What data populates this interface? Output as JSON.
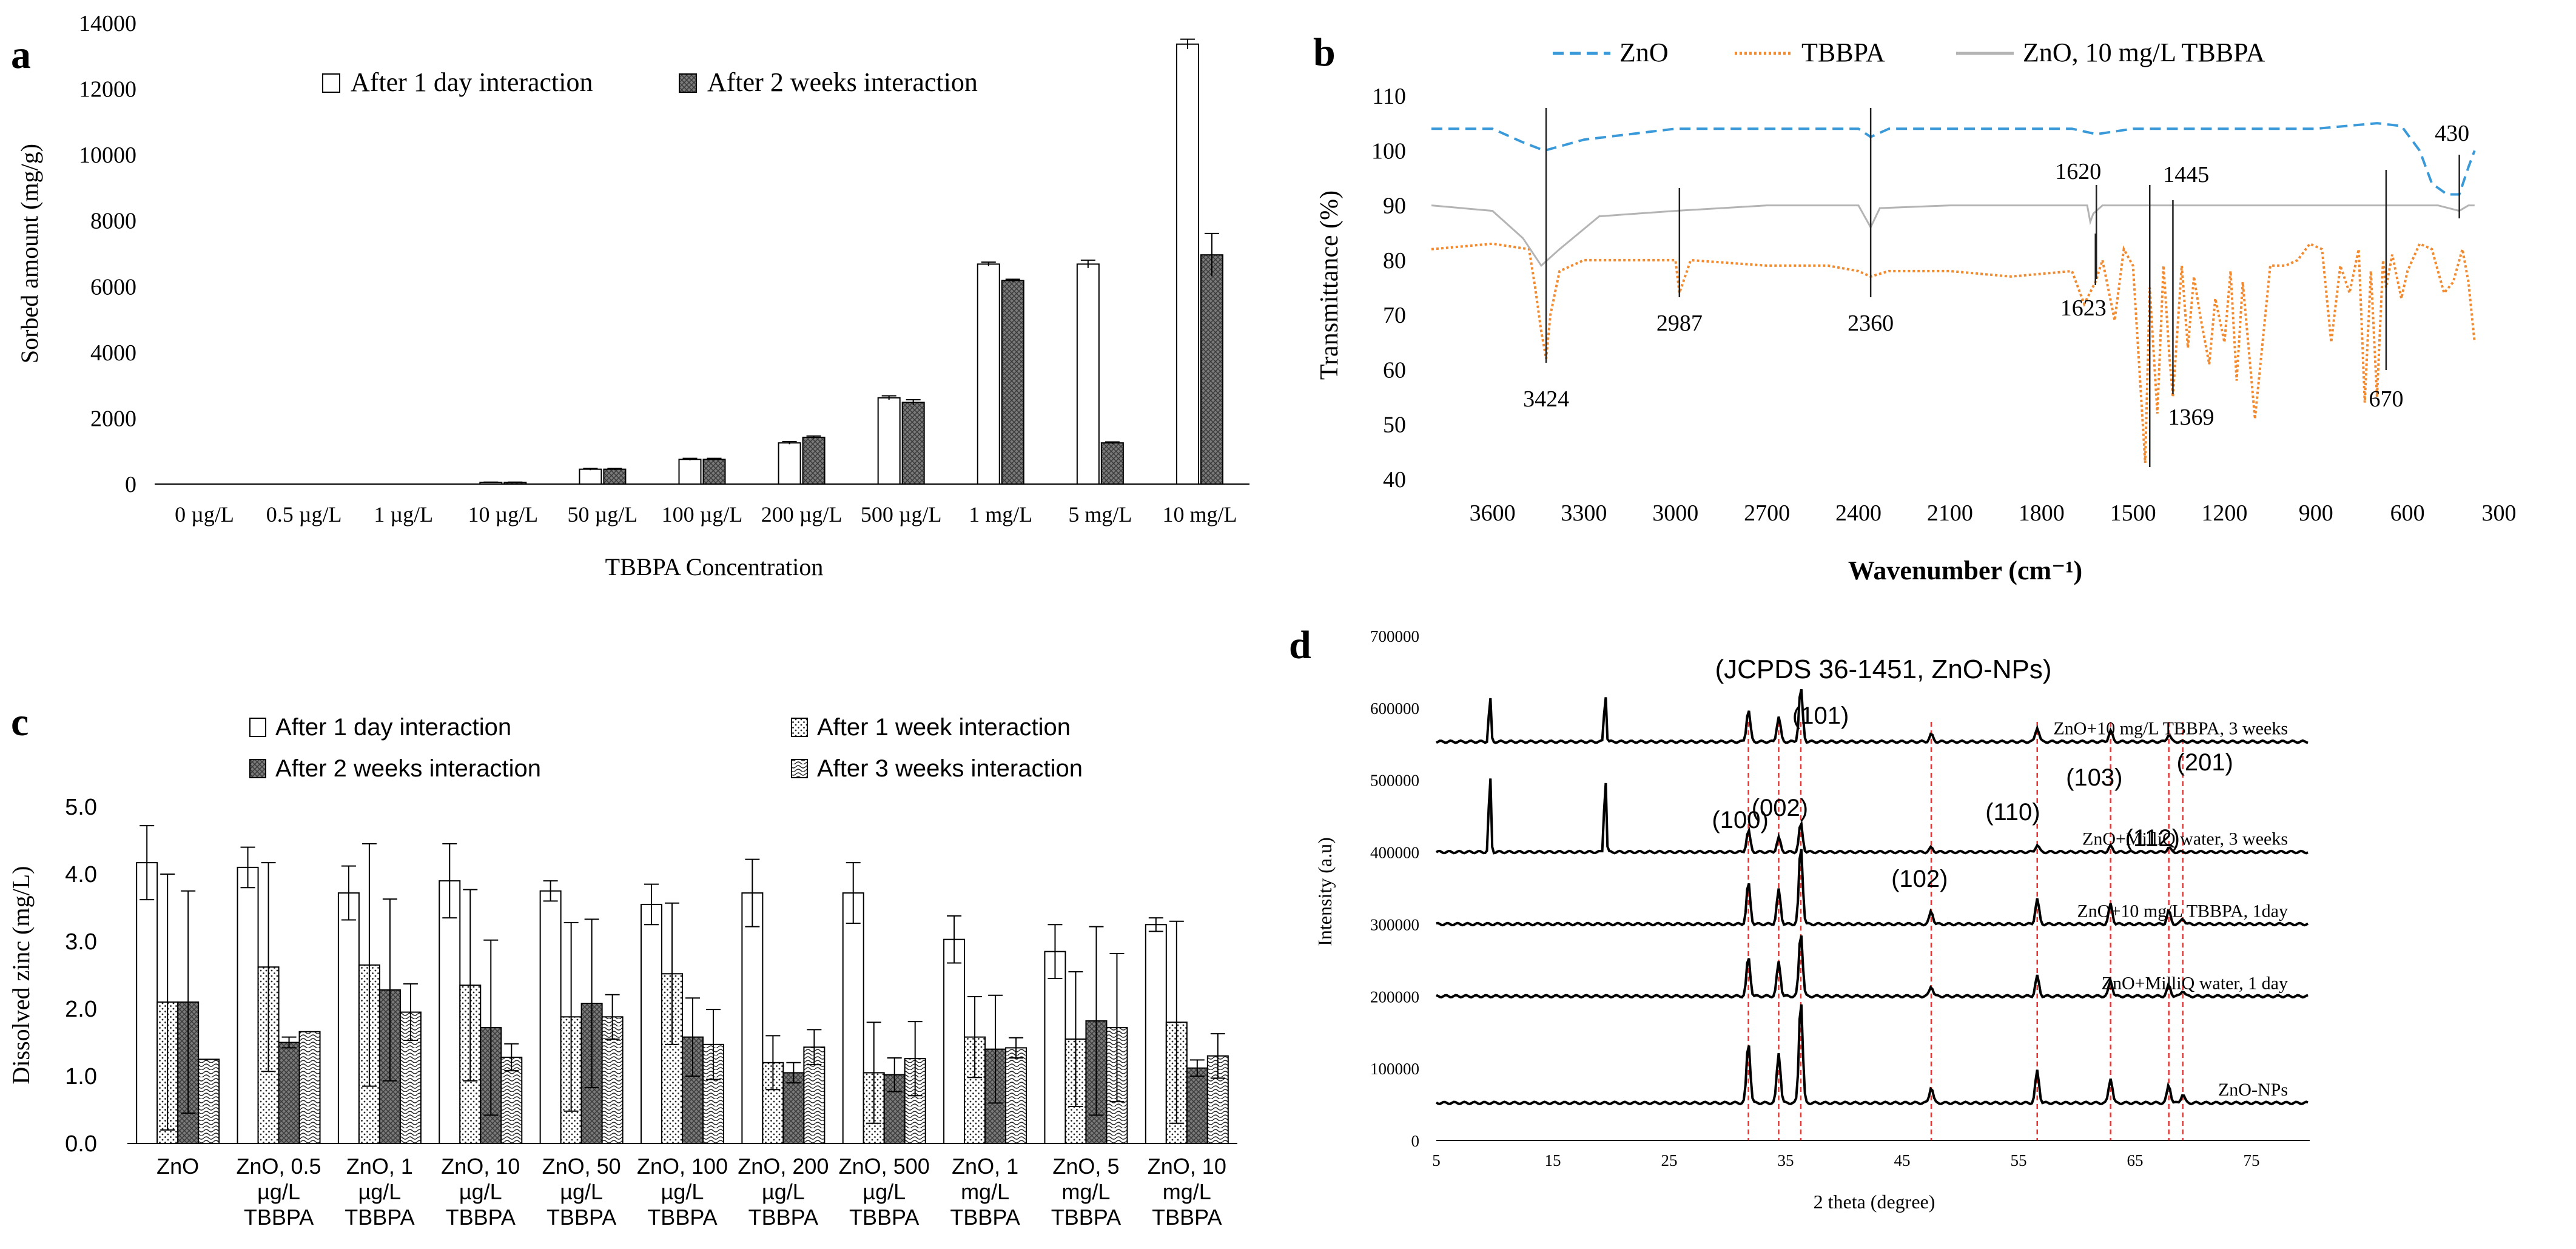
{
  "panel_labels": {
    "a": "a",
    "b": "b",
    "c": "c",
    "d": "d"
  },
  "chart_data": [
    {
      "panel": "a",
      "type": "bar",
      "title": "",
      "xlabel": "TBBPA Concentration",
      "ylabel": "Sorbed amount (mg/g)",
      "ylim": [
        0,
        14000
      ],
      "yticks": [
        "0",
        "2000",
        "4000",
        "6000",
        "8000",
        "10000",
        "12000",
        "14000"
      ],
      "legend_position": "top",
      "categories": [
        "0 µg/L",
        "0.5 µg/L",
        "1 µg/L",
        "10 µg/L",
        "50 µg/L",
        "100 µg/L",
        "200 µg/L",
        "500 µg/L",
        "1 mg/L",
        "5 mg/L",
        "10 mg/L"
      ],
      "series": [
        {
          "name": "After 1 day interaction",
          "color": "#ffffff",
          "pattern": "plain",
          "values": [
            0,
            0,
            0,
            50,
            450,
            750,
            1250,
            2620,
            6680,
            6680,
            13360
          ],
          "errors": [
            0,
            0,
            0,
            10,
            30,
            30,
            40,
            60,
            60,
            120,
            150
          ]
        },
        {
          "name": "After 2 weeks interaction",
          "color": "#6d6d6d",
          "pattern": "crosshatch",
          "values": [
            0,
            0,
            0,
            50,
            450,
            750,
            1420,
            2480,
            6180,
            1250,
            6960
          ],
          "errors": [
            0,
            0,
            0,
            10,
            30,
            30,
            40,
            80,
            40,
            30,
            650
          ]
        }
      ]
    },
    {
      "panel": "b",
      "type": "line",
      "title": "",
      "xlabel": "Wavenumber (cm⁻¹)",
      "ylabel": "Transmittance (%)",
      "xlim": [
        3800,
        300
      ],
      "ylim": [
        40,
        110
      ],
      "xticks": [
        "3600",
        "3300",
        "3000",
        "2700",
        "2400",
        "2100",
        "1800",
        "1500",
        "1200",
        "900",
        "600",
        "300"
      ],
      "yticks": [
        "40",
        "50",
        "60",
        "70",
        "80",
        "90",
        "100",
        "110"
      ],
      "legend_position": "top",
      "series": [
        {
          "name": "ZnO",
          "color": "#3a9ad9",
          "style": "dashed",
          "x": [
            3800,
            3600,
            3500,
            3430,
            3300,
            3000,
            2700,
            2400,
            2360,
            2300,
            2100,
            1800,
            1700,
            1620,
            1500,
            1200,
            900,
            700,
            620,
            560,
            520,
            470,
            430,
            400,
            380
          ],
          "y": [
            104,
            104,
            101.5,
            100,
            102,
            104,
            104,
            104,
            102.5,
            104,
            104,
            104,
            104,
            103,
            104,
            104,
            104,
            105,
            104.5,
            100,
            94,
            92,
            92,
            97,
            100
          ]
        },
        {
          "name": "TBBPA",
          "color": "#f28a30",
          "style": "dotted",
          "x": [
            3800,
            3600,
            3480,
            3460,
            3440,
            3424,
            3410,
            3380,
            3300,
            3100,
            3000,
            2987,
            2950,
            2700,
            2500,
            2400,
            2360,
            2300,
            2100,
            1900,
            1700,
            1660,
            1623,
            1600,
            1560,
            1530,
            1500,
            1470,
            1460,
            1445,
            1420,
            1400,
            1380,
            1369,
            1340,
            1320,
            1300,
            1280,
            1250,
            1230,
            1200,
            1180,
            1160,
            1140,
            1100,
            1050,
            1000,
            960,
            920,
            880,
            850,
            820,
            790,
            760,
            740,
            720,
            700,
            680,
            670,
            650,
            620,
            600,
            560,
            520,
            480,
            450,
            420,
            400,
            380
          ],
          "y": [
            82,
            83,
            82,
            75,
            67,
            62,
            70,
            78,
            80,
            80,
            80,
            74,
            80,
            79,
            79,
            78,
            77,
            78,
            78,
            77,
            78,
            72,
            76,
            80,
            69,
            82,
            79,
            52,
            43,
            75,
            52,
            79,
            62,
            55,
            79,
            64,
            77,
            70,
            61,
            73,
            65,
            78,
            58,
            76,
            51,
            79,
            79,
            80,
            83,
            82,
            65,
            79,
            74,
            82,
            54,
            78,
            55,
            80,
            75,
            81,
            73,
            78,
            83,
            82,
            74,
            76,
            82,
            76,
            65
          ]
        },
        {
          "name": "ZnO, 10 mg/L TBBPA",
          "color": "#b4b4b4",
          "style": "solid",
          "x": [
            3800,
            3600,
            3500,
            3440,
            3380,
            3250,
            3000,
            2700,
            2400,
            2360,
            2330,
            2100,
            1800,
            1650,
            1640,
            1630,
            1600,
            1450,
            1200,
            900,
            600,
            500,
            430,
            400,
            380
          ],
          "y": [
            90,
            89,
            84,
            79,
            82,
            88,
            89,
            90,
            90,
            86,
            89.5,
            90,
            90,
            90,
            87,
            88.5,
            90,
            90,
            90,
            90,
            90,
            90,
            89,
            90,
            90
          ]
        }
      ],
      "annotations": [
        {
          "label": "3424",
          "x": 3424
        },
        {
          "label": "2987",
          "x": 2987
        },
        {
          "label": "2360",
          "x": 2360
        },
        {
          "label": "1620",
          "x": 1620
        },
        {
          "label": "1623",
          "x": 1623
        },
        {
          "label": "1445",
          "x": 1445
        },
        {
          "label": "1369",
          "x": 1369
        },
        {
          "label": "670",
          "x": 670
        },
        {
          "label": "430",
          "x": 430
        }
      ]
    },
    {
      "panel": "c",
      "type": "bar",
      "title": "",
      "xlabel": "",
      "ylabel": "Dissolved zinc (mg/L)",
      "ylim": [
        0,
        5
      ],
      "yticks": [
        "0.0",
        "1.0",
        "2.0",
        "3.0",
        "4.0",
        "5.0"
      ],
      "legend_position": "top",
      "categories": [
        [
          "ZnO"
        ],
        [
          "ZnO, 0.5",
          "µg/L",
          "TBBPA"
        ],
        [
          "ZnO, 1",
          "µg/L",
          "TBBPA"
        ],
        [
          "ZnO, 10",
          "µg/L",
          "TBBPA"
        ],
        [
          "ZnO, 50",
          "µg/L",
          "TBBPA"
        ],
        [
          "ZnO, 100",
          "µg/L",
          "TBBPA"
        ],
        [
          "ZnO, 200",
          "µg/L",
          "TBBPA"
        ],
        [
          "ZnO, 500",
          "µg/L",
          "TBBPA"
        ],
        [
          "ZnO, 1",
          "mg/L",
          "TBBPA"
        ],
        [
          "ZnO, 5",
          "mg/L",
          "TBBPA"
        ],
        [
          "ZnO, 10",
          "mg/L",
          "TBBPA"
        ]
      ],
      "series": [
        {
          "name": "After 1 day interaction",
          "color": "#ffffff",
          "pattern": "plain",
          "values": [
            4.17,
            4.1,
            3.72,
            3.9,
            3.75,
            3.55,
            3.72,
            3.72,
            3.03,
            2.85,
            3.25
          ],
          "errors": [
            0.55,
            0.3,
            0.4,
            0.55,
            0.15,
            0.3,
            0.5,
            0.45,
            0.35,
            0.4,
            0.1
          ]
        },
        {
          "name": "After 1 week interaction",
          "color": "#ffffff",
          "pattern": "dots",
          "values": [
            2.1,
            2.62,
            2.65,
            2.35,
            1.88,
            2.52,
            1.2,
            1.05,
            1.58,
            1.55,
            1.8
          ],
          "errors": [
            1.9,
            1.55,
            1.8,
            1.42,
            1.4,
            1.05,
            0.4,
            0.75,
            0.6,
            1.0,
            1.5
          ]
        },
        {
          "name": "After 2 weeks interaction",
          "color": "#6d6d6d",
          "pattern": "crosshatch",
          "values": [
            2.1,
            1.5,
            2.28,
            1.72,
            2.08,
            1.58,
            1.05,
            1.02,
            1.4,
            1.82,
            1.12
          ],
          "errors": [
            1.65,
            0.08,
            1.35,
            1.3,
            1.25,
            0.58,
            0.15,
            0.25,
            0.8,
            1.4,
            0.12
          ]
        },
        {
          "name": "After 3 weeks interaction",
          "color": "#ffffff",
          "pattern": "waves",
          "values": [
            1.25,
            1.66,
            1.95,
            1.28,
            1.88,
            1.47,
            1.43,
            1.26,
            1.42,
            1.72,
            1.3
          ],
          "errors": [
            0.0,
            0.0,
            0.42,
            0.2,
            0.33,
            0.52,
            0.26,
            0.55,
            0.15,
            1.1,
            0.33
          ]
        }
      ]
    },
    {
      "panel": "d",
      "type": "line",
      "title": "(JCPDS 36-1451, ZnO-NPs)",
      "xlabel": "2 theta (degree)",
      "ylabel": "Intensity (a.u)",
      "xlim": [
        5,
        80
      ],
      "ylim": [
        0,
        700000
      ],
      "xticks": [
        "5",
        "15",
        "25",
        "35",
        "45",
        "55",
        "65",
        "75"
      ],
      "yticks": [
        "0",
        "100000",
        "200000",
        "300000",
        "400000",
        "500000",
        "600000",
        "700000"
      ],
      "reference_lines": [
        31.8,
        34.4,
        36.3,
        47.5,
        56.6,
        62.9,
        67.9,
        69.1
      ],
      "peak_labels": [
        "(100)",
        "(002)",
        "(101)",
        "(102)",
        "(110)",
        "(103)",
        "(112)",
        "(201)"
      ],
      "series": [
        {
          "name": "ZnO+10 mg/L TBBPA, 3 weeks",
          "baseline": 553000,
          "peaks": [
            [
              9.6,
              70000
            ],
            [
              19.5,
              75000
            ],
            [
              31.8,
              45000
            ],
            [
              34.4,
              35000
            ],
            [
              36.3,
              75000
            ],
            [
              47.5,
              10000
            ],
            [
              56.6,
              20000
            ],
            [
              62.9,
              15000
            ],
            [
              67.9,
              10000
            ]
          ]
        },
        {
          "name": "ZnO+MilliQ water, 3 weeks",
          "baseline": 400000,
          "peaks": [
            [
              9.6,
              120000
            ],
            [
              19.5,
              115000
            ],
            [
              31.8,
              30000
            ],
            [
              34.4,
              20000
            ],
            [
              36.3,
              40000
            ],
            [
              47.5,
              6000
            ],
            [
              56.6,
              10000
            ],
            [
              62.9,
              8000
            ],
            [
              67.9,
              6000
            ]
          ]
        },
        {
          "name": "ZnO+10 mg/L TBBPA, 1day",
          "baseline": 300000,
          "peaks": [
            [
              31.8,
              58000
            ],
            [
              34.4,
              48000
            ],
            [
              36.3,
              110000
            ],
            [
              47.5,
              18000
            ],
            [
              56.6,
              35000
            ],
            [
              62.9,
              28000
            ],
            [
              67.9,
              18000
            ],
            [
              69.1,
              8000
            ]
          ]
        },
        {
          "name": "ZnO+MilliQ water, 1 day",
          "baseline": 200000,
          "peaks": [
            [
              31.8,
              55000
            ],
            [
              34.4,
              48000
            ],
            [
              36.3,
              90000
            ],
            [
              47.5,
              14000
            ],
            [
              56.6,
              28000
            ],
            [
              62.9,
              22000
            ],
            [
              67.9,
              15000
            ],
            [
              69.1,
              8000
            ]
          ]
        },
        {
          "name": "ZnO-NPs",
          "baseline": 52000,
          "peaks": [
            [
              31.8,
              85000
            ],
            [
              34.4,
              70000
            ],
            [
              36.3,
              145000
            ],
            [
              47.5,
              22000
            ],
            [
              56.6,
              45000
            ],
            [
              62.9,
              35000
            ],
            [
              67.9,
              25000
            ],
            [
              69.1,
              12000
            ]
          ]
        }
      ]
    }
  ]
}
